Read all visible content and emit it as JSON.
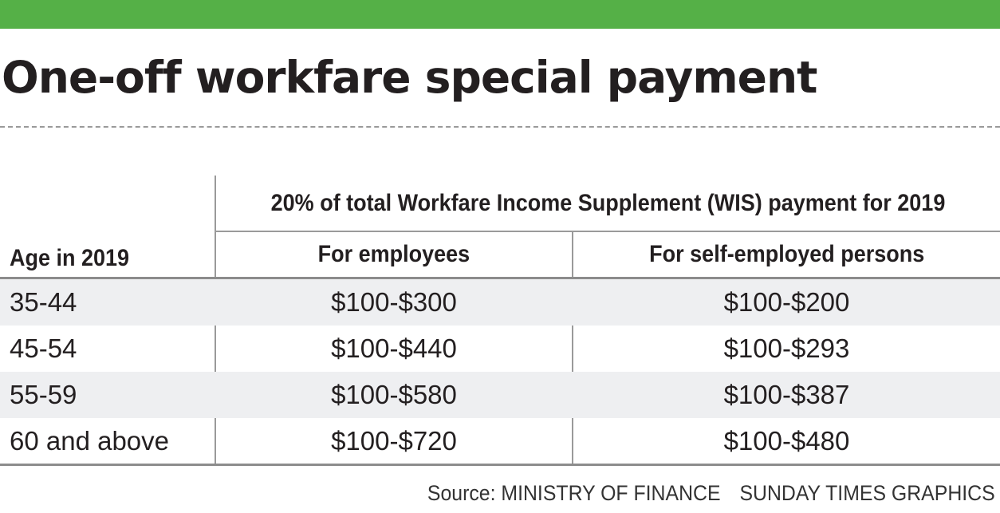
{
  "title": "One-off workfare special payment",
  "colors": {
    "top_bar": "#55b047",
    "rule": "#9a9a9a",
    "row_shade": "#eeeff1"
  },
  "table": {
    "group_header": "20% of total Workfare Income Supplement (WIS) payment for 2019",
    "columns": {
      "age": "Age in 2019",
      "employees": "For employees",
      "self_employed": "For self-employed persons"
    },
    "rows": [
      {
        "age": "35-44",
        "employees": "$100-$300",
        "self_employed": "$100-$200"
      },
      {
        "age": "45-54",
        "employees": "$100-$440",
        "self_employed": "$100-$293"
      },
      {
        "age": "55-59",
        "employees": "$100-$580",
        "self_employed": "$100-$387"
      },
      {
        "age": "60 and above",
        "employees": "$100-$720",
        "self_employed": "$100-$480"
      }
    ]
  },
  "footer": {
    "source": "Source: MINISTRY OF FINANCE",
    "credit": "SUNDAY TIMES GRAPHICS"
  }
}
